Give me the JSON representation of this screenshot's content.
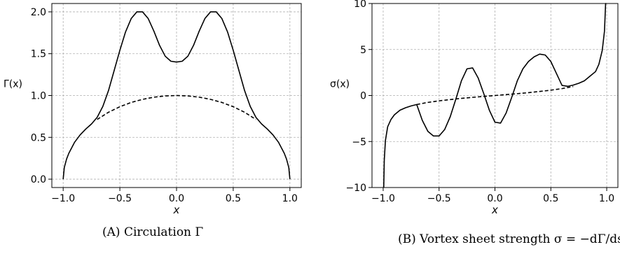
{
  "chart_data": [
    {
      "type": "line",
      "xlabel": "x",
      "ylabel": "Γ(x)",
      "xlim": [
        -1.1,
        1.1
      ],
      "ylim": [
        -0.1,
        2.1
      ],
      "xticks": [
        -1.0,
        -0.5,
        0.0,
        0.5,
        1.0
      ],
      "xtick_labels": [
        "−1.0",
        "−0.5",
        "0.0",
        "0.5",
        "1.0"
      ],
      "yticks": [
        0.0,
        0.5,
        1.0,
        1.5,
        2.0
      ],
      "ytick_labels": [
        "0.0",
        "0.5",
        "1.0",
        "1.5",
        "2.0"
      ],
      "grid": true,
      "caption": "(A) Circulation Γ",
      "series": [
        {
          "style": "solid",
          "color": "#000000",
          "x": [
            -1.0,
            -0.99,
            -0.97,
            -0.95,
            -0.9,
            -0.85,
            -0.8,
            -0.75,
            -0.7,
            -0.65,
            -0.6,
            -0.55,
            -0.5,
            -0.45,
            -0.4,
            -0.35,
            -0.3,
            -0.25,
            -0.2,
            -0.15,
            -0.1,
            -0.05,
            0.0,
            0.05,
            0.1,
            0.15,
            0.2,
            0.25,
            0.3,
            0.35,
            0.4,
            0.45,
            0.5,
            0.55,
            0.6,
            0.65,
            0.7,
            0.75,
            0.8,
            0.85,
            0.9,
            0.95,
            0.97,
            0.99,
            1.0
          ],
          "y": [
            0.0,
            0.14,
            0.24,
            0.31,
            0.44,
            0.53,
            0.6,
            0.66,
            0.74,
            0.87,
            1.06,
            1.3,
            1.54,
            1.76,
            1.92,
            2.0,
            2.0,
            1.92,
            1.77,
            1.6,
            1.47,
            1.41,
            1.4,
            1.41,
            1.47,
            1.6,
            1.77,
            1.92,
            2.0,
            2.0,
            1.92,
            1.76,
            1.54,
            1.3,
            1.06,
            0.87,
            0.74,
            0.66,
            0.6,
            0.53,
            0.44,
            0.31,
            0.24,
            0.14,
            0.0
          ]
        },
        {
          "style": "dashed",
          "color": "#000000",
          "x": [
            -0.7,
            -0.6,
            -0.5,
            -0.4,
            -0.3,
            -0.2,
            -0.1,
            0.0,
            0.1,
            0.2,
            0.3,
            0.4,
            0.5,
            0.6,
            0.7
          ],
          "y": [
            0.714,
            0.8,
            0.866,
            0.917,
            0.954,
            0.98,
            0.995,
            1.0,
            0.995,
            0.98,
            0.954,
            0.917,
            0.866,
            0.8,
            0.714
          ]
        }
      ]
    },
    {
      "type": "line",
      "xlabel": "x",
      "ylabel": "σ(x)",
      "xlim": [
        -1.1,
        1.1
      ],
      "ylim": [
        -10,
        10
      ],
      "xticks": [
        -1.0,
        -0.5,
        0.0,
        0.5,
        1.0
      ],
      "xtick_labels": [
        "−1.0",
        "−0.5",
        "0.0",
        "0.5",
        "1.0"
      ],
      "yticks": [
        -10,
        -5,
        0,
        5,
        10
      ],
      "ytick_labels": [
        "−10",
        "−5",
        "0",
        "5",
        "10"
      ],
      "grid": true,
      "caption": "(B) Vortex sheet strength σ = −dΓ/ds",
      "series": [
        {
          "style": "solid",
          "color": "#000000",
          "x": [
            -0.995,
            -0.99,
            -0.98,
            -0.96,
            -0.93,
            -0.9,
            -0.85,
            -0.8,
            -0.75,
            -0.7,
            -0.65,
            -0.6,
            -0.55,
            -0.5,
            -0.45,
            -0.4,
            -0.35,
            -0.3,
            -0.25,
            -0.2,
            -0.15,
            -0.1,
            -0.05,
            0.0,
            0.05,
            0.1,
            0.15,
            0.2,
            0.25,
            0.3,
            0.35,
            0.4,
            0.45,
            0.5,
            0.55,
            0.6,
            0.65,
            0.7,
            0.75,
            0.8,
            0.85,
            0.9,
            0.93,
            0.96,
            0.98,
            0.99,
            0.995
          ],
          "y": [
            -10.0,
            -7.0,
            -4.9,
            -3.4,
            -2.6,
            -2.1,
            -1.6,
            -1.33,
            -1.13,
            -0.98,
            -2.7,
            -3.9,
            -4.4,
            -4.4,
            -3.7,
            -2.3,
            -0.4,
            1.6,
            2.9,
            3.0,
            1.9,
            0.2,
            -1.6,
            -2.9,
            -3.0,
            -1.9,
            -0.2,
            1.6,
            2.9,
            3.7,
            4.2,
            4.5,
            4.4,
            3.7,
            2.4,
            1.1,
            1.0,
            1.13,
            1.33,
            1.6,
            2.1,
            2.6,
            3.4,
            4.9,
            7.0,
            10.0,
            10.0
          ]
        },
        {
          "style": "dashed",
          "color": "#000000",
          "x": [
            -0.7,
            -0.6,
            -0.5,
            -0.4,
            -0.3,
            -0.2,
            -0.1,
            0.0,
            0.1,
            0.2,
            0.3,
            0.4,
            0.5,
            0.6,
            0.7
          ],
          "y": [
            -0.98,
            -0.75,
            -0.58,
            -0.44,
            -0.31,
            -0.2,
            -0.1,
            0.0,
            0.1,
            0.2,
            0.31,
            0.44,
            0.58,
            0.75,
            0.98
          ]
        }
      ]
    }
  ]
}
